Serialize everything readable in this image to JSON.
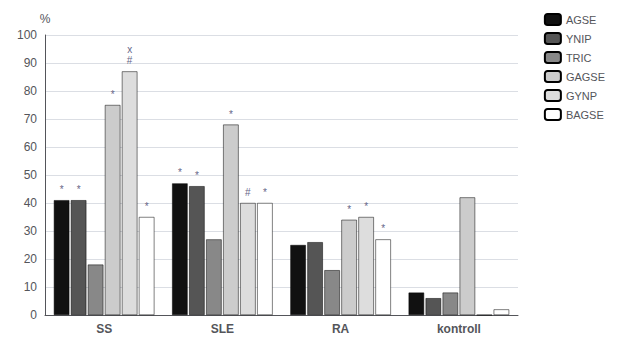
{
  "chart_data": {
    "type": "bar",
    "ylabel": "%",
    "categories": [
      "SS",
      "SLE",
      "RA",
      "kontroll"
    ],
    "series": [
      {
        "name": "AGSE",
        "color": "#111111",
        "values": [
          41,
          47,
          25,
          8
        ]
      },
      {
        "name": "YNIP",
        "color": "#555555",
        "values": [
          41,
          46,
          26,
          6
        ]
      },
      {
        "name": "TRIC",
        "color": "#888888",
        "values": [
          18,
          27,
          16,
          8
        ]
      },
      {
        "name": "GAGSE",
        "color": "#cccccc",
        "values": [
          75,
          68,
          34,
          42
        ]
      },
      {
        "name": "GYNP",
        "color": "#dddddd",
        "values": [
          87,
          40,
          35,
          0
        ]
      },
      {
        "name": "BAGSE",
        "color": "#ffffff",
        "values": [
          35,
          40,
          27,
          2
        ]
      }
    ],
    "annotations": [
      {
        "category": "SS",
        "series": "AGSE",
        "text": "*"
      },
      {
        "category": "SS",
        "series": "YNIP",
        "text": "*"
      },
      {
        "category": "SS",
        "series": "GAGSE",
        "text": "*"
      },
      {
        "category": "SS",
        "series": "GYNP",
        "text": "#"
      },
      {
        "category": "SS",
        "series": "GYNP",
        "text": "x"
      },
      {
        "category": "SS",
        "series": "BAGSE",
        "text": "*"
      },
      {
        "category": "SLE",
        "series": "AGSE",
        "text": "*"
      },
      {
        "category": "SLE",
        "series": "YNIP",
        "text": "*"
      },
      {
        "category": "SLE",
        "series": "GAGSE",
        "text": "*"
      },
      {
        "category": "SLE",
        "series": "GYNP",
        "text": "#"
      },
      {
        "category": "SLE",
        "series": "BAGSE",
        "text": "*"
      },
      {
        "category": "RA",
        "series": "GAGSE",
        "text": "*"
      },
      {
        "category": "RA",
        "series": "GYNP",
        "text": "*"
      },
      {
        "category": "RA",
        "series": "BAGSE",
        "text": "*"
      }
    ],
    "ylim": [
      0,
      100
    ],
    "yticks": [
      0,
      10,
      20,
      30,
      40,
      50,
      60,
      70,
      80,
      90,
      100
    ],
    "grid": true,
    "legend": "upper right"
  }
}
